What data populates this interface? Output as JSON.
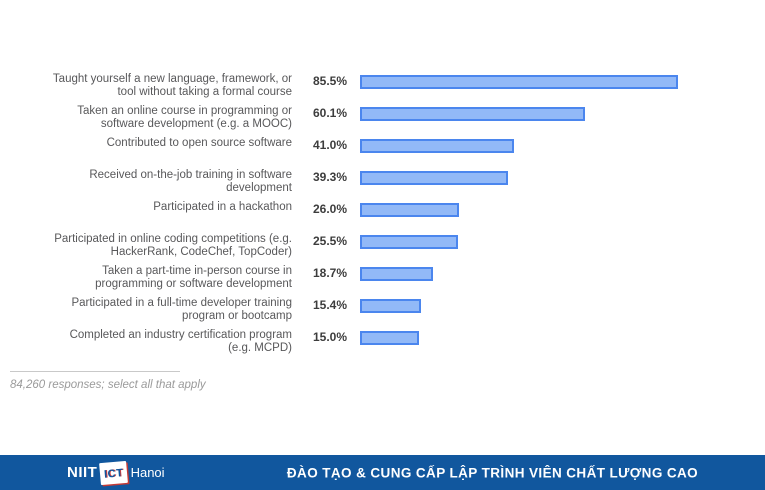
{
  "chart_data": {
    "type": "bar",
    "orientation": "horizontal",
    "categories": [
      "Taught yourself a new language, framework, or\ntool without taking a formal course",
      "Taken an online course in programming or\nsoftware development (e.g. a MOOC)",
      "Contributed to open source software",
      "Received on-the-job training in software\ndevelopment",
      "Participated in a hackathon",
      "Participated in online coding competitions (e.g.\nHackerRank, CodeChef, TopCoder)",
      "Taken a part-time in-person course in\nprogramming or software development",
      "Participated in a full-time developer training\nprogram or bootcamp",
      "Completed an industry certification program\n(e.g. MCPD)"
    ],
    "values": [
      85.5,
      60.1,
      41.0,
      39.3,
      26.0,
      25.5,
      18.7,
      15.4,
      15.0
    ],
    "value_labels": [
      "85.5%",
      "60.1%",
      "41.0%",
      "39.3%",
      "26.0%",
      "25.5%",
      "18.7%",
      "15.4%",
      "15.0%"
    ],
    "xlim": [
      0,
      100
    ],
    "grid": false,
    "legend": "none",
    "note": "84,260 responses; select all that apply",
    "bar_fill": "#92b9f7",
    "bar_border": "#4b86ee"
  },
  "footer": {
    "logo": {
      "brand": "NIIT",
      "unit": "ICT",
      "city": "Hanoi"
    },
    "tagline": "ĐÀO TẠO & CUNG CẤP LẬP TRÌNH VIÊN CHẤT LƯỢNG CAO",
    "bg_color": "#11579e"
  }
}
